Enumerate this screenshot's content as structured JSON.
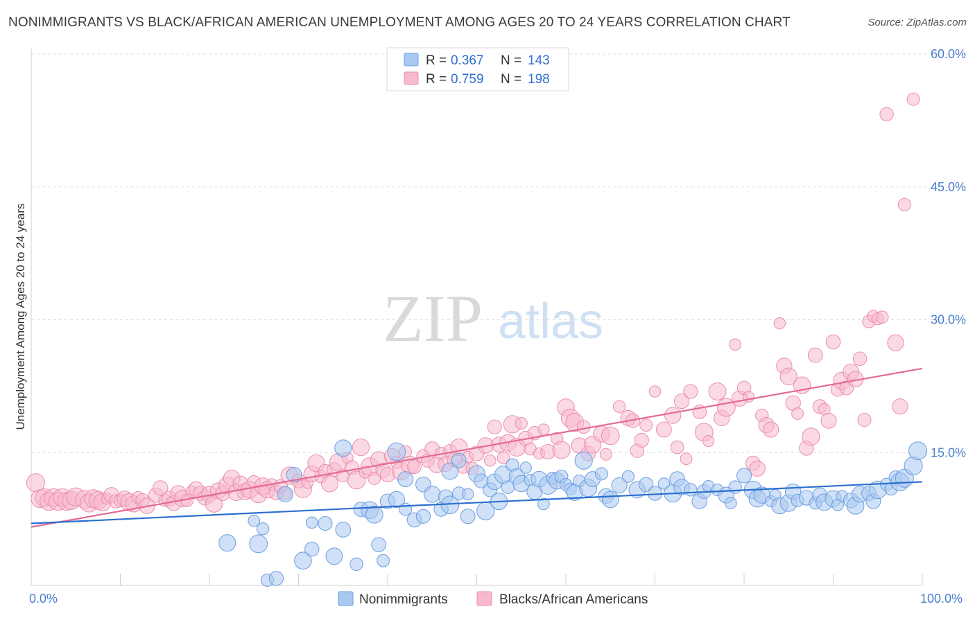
{
  "title": "NONIMMIGRANTS VS BLACK/AFRICAN AMERICAN UNEMPLOYMENT AMONG AGES 20 TO 24 YEARS CORRELATION CHART",
  "source": "Source: ZipAtlas.com",
  "watermark": {
    "zip": "ZIP",
    "atlas": "atlas"
  },
  "colors": {
    "blue_fill": "#a9c8f0",
    "blue_stroke": "#6b9ee0",
    "blue_line": "#2a6fd0",
    "pink_fill": "#f7b9cd",
    "pink_stroke": "#eb8dab",
    "pink_line": "#e46a93",
    "grid": "#dedede",
    "axis_label": "#4a7fd0"
  },
  "legend": {
    "rows": [
      {
        "r_label": "R = ",
        "r_value": "0.367",
        "n_label": "N = ",
        "n_value": "143"
      },
      {
        "r_label": "R = ",
        "r_value": "0.759",
        "n_label": "N = ",
        "n_value": "198"
      }
    ]
  },
  "bottom_legend": [
    "Nonimmigrants",
    "Blacks/African Americans"
  ],
  "chart_data": {
    "type": "scatter",
    "title": "NONIMMIGRANTS VS BLACK/AFRICAN AMERICAN UNEMPLOYMENT AMONG AGES 20 TO 24 YEARS CORRELATION CHART",
    "xlabel": "",
    "ylabel": "Unemployment Among Ages 20 to 24 years",
    "xlim": [
      0,
      100
    ],
    "ylim": [
      0,
      60
    ],
    "x_tick_labels": [
      "0.0%",
      "100.0%"
    ],
    "y_ticks": [
      15,
      30,
      45,
      60
    ],
    "y_tick_labels": [
      "15.0%",
      "30.0%",
      "45.0%",
      "60.0%"
    ],
    "grid": "horizontal dashed",
    "legend_position": "top-center",
    "series": [
      {
        "name": "Nonimmigrants",
        "r": 0.367,
        "n": 143,
        "trend": {
          "x": [
            0,
            100
          ],
          "y": [
            7.0,
            11.7
          ]
        },
        "points": [
          [
            22,
            4.8
          ],
          [
            25,
            7.3
          ],
          [
            25.5,
            4.7
          ],
          [
            26,
            6.4
          ],
          [
            26.5,
            0.6
          ],
          [
            27.5,
            0.8
          ],
          [
            28.5,
            10.3
          ],
          [
            29.5,
            12.5
          ],
          [
            30.5,
            2.8
          ],
          [
            31.5,
            4.1
          ],
          [
            31.5,
            7.1
          ],
          [
            33,
            7.0
          ],
          [
            34,
            3.3
          ],
          [
            35,
            6.3
          ],
          [
            35,
            15.5
          ],
          [
            36.5,
            2.4
          ],
          [
            37,
            8.6
          ],
          [
            38,
            8.5
          ],
          [
            38.5,
            8.0
          ],
          [
            39,
            4.6
          ],
          [
            39.5,
            2.8
          ],
          [
            40,
            9.5
          ],
          [
            41,
            9.7
          ],
          [
            41,
            15.1
          ],
          [
            42,
            8.6
          ],
          [
            42,
            12.0
          ],
          [
            43,
            7.4
          ],
          [
            44,
            7.8
          ],
          [
            44,
            11.4
          ],
          [
            45,
            10.3
          ],
          [
            46,
            8.6
          ],
          [
            46.5,
            10.0
          ],
          [
            47,
            9.1
          ],
          [
            47,
            12.9
          ],
          [
            48,
            10.4
          ],
          [
            48,
            14.1
          ],
          [
            49,
            7.8
          ],
          [
            49,
            10.3
          ],
          [
            50,
            12.6
          ],
          [
            50.5,
            11.8
          ],
          [
            51,
            8.4
          ],
          [
            51.5,
            10.8
          ],
          [
            52,
            11.7
          ],
          [
            52.5,
            9.5
          ],
          [
            53,
            12.5
          ],
          [
            53.5,
            11.1
          ],
          [
            54,
            13.6
          ],
          [
            54.5,
            12.3
          ],
          [
            55,
            11.5
          ],
          [
            55.5,
            13.3
          ],
          [
            56,
            11.9
          ],
          [
            56.5,
            10.6
          ],
          [
            57,
            12.0
          ],
          [
            57.5,
            9.2
          ],
          [
            58,
            11.3
          ],
          [
            58.5,
            12.1
          ],
          [
            59,
            11.8
          ],
          [
            59.5,
            12.3
          ],
          [
            60,
            11.4
          ],
          [
            60.5,
            10.9
          ],
          [
            61,
            10.5
          ],
          [
            61.5,
            11.8
          ],
          [
            62,
            14.1
          ],
          [
            62.5,
            11.0
          ],
          [
            63,
            12.0
          ],
          [
            64,
            12.6
          ],
          [
            64.5,
            10.1
          ],
          [
            65,
            9.7
          ],
          [
            66,
            11.3
          ],
          [
            67,
            12.3
          ],
          [
            68,
            10.8
          ],
          [
            69,
            11.4
          ],
          [
            70,
            10.4
          ],
          [
            71,
            11.5
          ],
          [
            72,
            10.4
          ],
          [
            72.5,
            12.0
          ],
          [
            73,
            11.1
          ],
          [
            74,
            10.8
          ],
          [
            75,
            9.5
          ],
          [
            75.5,
            10.6
          ],
          [
            76,
            11.2
          ],
          [
            77,
            10.8
          ],
          [
            78,
            10.2
          ],
          [
            78.5,
            9.3
          ],
          [
            79,
            11.1
          ],
          [
            80,
            12.4
          ],
          [
            81,
            10.8
          ],
          [
            81.5,
            9.8
          ],
          [
            82,
            10.2
          ],
          [
            83,
            9.5
          ],
          [
            83.5,
            10.2
          ],
          [
            84,
            9.0
          ],
          [
            85,
            9.3
          ],
          [
            85.5,
            10.6
          ],
          [
            86,
            9.6
          ],
          [
            87,
            9.9
          ],
          [
            88,
            9.3
          ],
          [
            88.5,
            10.2
          ],
          [
            89,
            9.4
          ],
          [
            90,
            9.8
          ],
          [
            90.5,
            9.1
          ],
          [
            91,
            10.1
          ],
          [
            92,
            9.6
          ],
          [
            92.5,
            9.0
          ],
          [
            93,
            10.3
          ],
          [
            94,
            10.4
          ],
          [
            94.5,
            9.5
          ],
          [
            95,
            10.8
          ],
          [
            96,
            11.4
          ],
          [
            96.5,
            10.9
          ],
          [
            97,
            12.2
          ],
          [
            97.5,
            11.7
          ],
          [
            98,
            12.1
          ],
          [
            99,
            13.5
          ],
          [
            99.5,
            15.2
          ]
        ]
      },
      {
        "name": "Blacks/African Americans",
        "r": 0.759,
        "n": 198,
        "trend": {
          "x": [
            0,
            100
          ],
          "y": [
            6.6,
            24.5
          ]
        },
        "points": [
          [
            0.5,
            11.6
          ],
          [
            1,
            9.8
          ],
          [
            1.5,
            9.9
          ],
          [
            2,
            9.5
          ],
          [
            2.5,
            9.9
          ],
          [
            3,
            9.5
          ],
          [
            3.5,
            9.9
          ],
          [
            4,
            9.5
          ],
          [
            4.5,
            9.6
          ],
          [
            5,
            10.0
          ],
          [
            6,
            9.7
          ],
          [
            6.5,
            9.3
          ],
          [
            7,
            9.8
          ],
          [
            7.5,
            9.6
          ],
          [
            8,
            9.4
          ],
          [
            8.5,
            9.8
          ],
          [
            9,
            10.2
          ],
          [
            9.5,
            9.5
          ],
          [
            10,
            9.6
          ],
          [
            10.5,
            9.8
          ],
          [
            11,
            9.4
          ],
          [
            11.5,
            9.2
          ],
          [
            12,
            9.9
          ],
          [
            12.5,
            9.6
          ],
          [
            13,
            9.0
          ],
          [
            14,
            10.2
          ],
          [
            14.5,
            11.0
          ],
          [
            15,
            9.6
          ],
          [
            15.5,
            9.8
          ],
          [
            16,
            9.3
          ],
          [
            16.5,
            10.4
          ],
          [
            17,
            9.8
          ],
          [
            17.5,
            9.6
          ],
          [
            18,
            10.6
          ],
          [
            18.5,
            10.9
          ],
          [
            19,
            10.4
          ],
          [
            19.5,
            9.9
          ],
          [
            20,
            10.3
          ],
          [
            20.5,
            9.2
          ],
          [
            21,
            10.7
          ],
          [
            21.5,
            10.4
          ],
          [
            22,
            11.3
          ],
          [
            22.5,
            12.1
          ],
          [
            23,
            10.5
          ],
          [
            23.5,
            11.5
          ],
          [
            24,
            10.6
          ],
          [
            24.5,
            10.8
          ],
          [
            25,
            11.7
          ],
          [
            25.5,
            10.3
          ],
          [
            26,
            11.2
          ],
          [
            26.5,
            10.8
          ],
          [
            27,
            11.4
          ],
          [
            27.5,
            10.5
          ],
          [
            28,
            11.2
          ],
          [
            28.5,
            10.4
          ],
          [
            29,
            12.4
          ],
          [
            30,
            11.8
          ],
          [
            30.5,
            10.9
          ],
          [
            31,
            11.6
          ],
          [
            31.5,
            12.6
          ],
          [
            32,
            13.8
          ],
          [
            32.5,
            12.3
          ],
          [
            33,
            12.9
          ],
          [
            33.5,
            11.5
          ],
          [
            34,
            13.1
          ],
          [
            34.5,
            13.9
          ],
          [
            35,
            12.4
          ],
          [
            35.5,
            14.4
          ],
          [
            36,
            13.3
          ],
          [
            36.5,
            11.9
          ],
          [
            37,
            15.6
          ],
          [
            37.5,
            12.8
          ],
          [
            38,
            13.4
          ],
          [
            38.5,
            12.1
          ],
          [
            39,
            14.2
          ],
          [
            39.5,
            13.0
          ],
          [
            40,
            12.5
          ],
          [
            40.5,
            14.6
          ],
          [
            41,
            13.9
          ],
          [
            41.5,
            12.9
          ],
          [
            42,
            15.1
          ],
          [
            42.5,
            13.6
          ],
          [
            43,
            13.4
          ],
          [
            44,
            14.6
          ],
          [
            44.5,
            14.1
          ],
          [
            45,
            15.4
          ],
          [
            45.5,
            13.6
          ],
          [
            46,
            14.9
          ],
          [
            46.5,
            13.7
          ],
          [
            47,
            15.2
          ],
          [
            47.5,
            14.2
          ],
          [
            48,
            15.6
          ],
          [
            48.5,
            13.4
          ],
          [
            49,
            14.5
          ],
          [
            49.5,
            13.2
          ],
          [
            50,
            14.9
          ],
          [
            51,
            15.8
          ],
          [
            51.5,
            14.1
          ],
          [
            52,
            17.9
          ],
          [
            52.5,
            15.9
          ],
          [
            53,
            14.4
          ],
          [
            53.5,
            16.1
          ],
          [
            54,
            18.2
          ],
          [
            54.5,
            15.6
          ],
          [
            55,
            18.3
          ],
          [
            55.5,
            16.6
          ],
          [
            56,
            15.4
          ],
          [
            56.5,
            17.2
          ],
          [
            57,
            14.9
          ],
          [
            57.5,
            17.6
          ],
          [
            58,
            15.1
          ],
          [
            59,
            16.6
          ],
          [
            59.5,
            15.3
          ],
          [
            60,
            20.1
          ],
          [
            60.5,
            18.9
          ],
          [
            61,
            18.4
          ],
          [
            61.5,
            15.8
          ],
          [
            62,
            17.9
          ],
          [
            62.5,
            14.9
          ],
          [
            63,
            15.9
          ],
          [
            64,
            17.1
          ],
          [
            64.5,
            14.8
          ],
          [
            65,
            16.9
          ],
          [
            66,
            20.2
          ],
          [
            67,
            18.9
          ],
          [
            67.5,
            18.6
          ],
          [
            68,
            15.2
          ],
          [
            68.5,
            16.4
          ],
          [
            69,
            18.1
          ],
          [
            70,
            21.9
          ],
          [
            71,
            17.6
          ],
          [
            72,
            19.2
          ],
          [
            72.5,
            15.6
          ],
          [
            73,
            20.8
          ],
          [
            73.5,
            14.3
          ],
          [
            74,
            21.9
          ],
          [
            75,
            19.6
          ],
          [
            75.5,
            17.3
          ],
          [
            76,
            16.3
          ],
          [
            77,
            21.9
          ],
          [
            77.5,
            18.9
          ],
          [
            78,
            20.1
          ],
          [
            79,
            27.2
          ],
          [
            79.5,
            21.1
          ],
          [
            80,
            22.3
          ],
          [
            80.5,
            21.3
          ],
          [
            81,
            13.8
          ],
          [
            81.5,
            13.2
          ],
          [
            82,
            19.2
          ],
          [
            82.5,
            18.1
          ],
          [
            83,
            17.6
          ],
          [
            84,
            29.6
          ],
          [
            84.5,
            24.8
          ],
          [
            85,
            23.6
          ],
          [
            85.5,
            20.6
          ],
          [
            86,
            19.4
          ],
          [
            86.5,
            22.6
          ],
          [
            87,
            15.5
          ],
          [
            87.5,
            16.8
          ],
          [
            88,
            26.0
          ],
          [
            88.5,
            20.2
          ],
          [
            89,
            19.9
          ],
          [
            89.5,
            18.6
          ],
          [
            90,
            27.5
          ],
          [
            90.5,
            22.1
          ],
          [
            91,
            23.1
          ],
          [
            91.5,
            22.3
          ],
          [
            92,
            24.1
          ],
          [
            92.5,
            23.3
          ],
          [
            93,
            25.6
          ],
          [
            93.5,
            18.7
          ],
          [
            94,
            29.8
          ],
          [
            94.5,
            30.4
          ],
          [
            95,
            30.1
          ],
          [
            95.5,
            30.3
          ],
          [
            96,
            53.2
          ],
          [
            97,
            27.4
          ],
          [
            97.5,
            20.2
          ],
          [
            98,
            43.0
          ],
          [
            99,
            54.9
          ]
        ]
      }
    ]
  },
  "axis": {
    "ylabel": "Unemployment Among Ages 20 to 24 years",
    "x_left": "0.0%",
    "x_right": "100.0%",
    "y_labels": [
      "15.0%",
      "30.0%",
      "45.0%",
      "60.0%"
    ]
  }
}
